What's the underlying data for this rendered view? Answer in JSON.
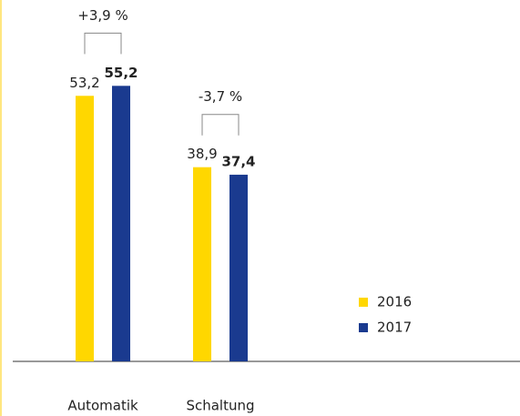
{
  "chart_data": {
    "type": "bar",
    "categories": [
      "Automatik",
      "Schaltung"
    ],
    "series": [
      {
        "name": "2016",
        "color": "#ffd700",
        "values": [
          53.2,
          38.9
        ],
        "value_labels": [
          "53,2",
          "38,9"
        ]
      },
      {
        "name": "2017",
        "color": "#1a3a8f",
        "values": [
          55.2,
          37.4
        ],
        "value_labels": [
          "55,2",
          "37,4"
        ]
      }
    ],
    "annotations": [
      "+3,9 %",
      "-3,7 %"
    ],
    "ylim": [
      0,
      72.4
    ]
  }
}
